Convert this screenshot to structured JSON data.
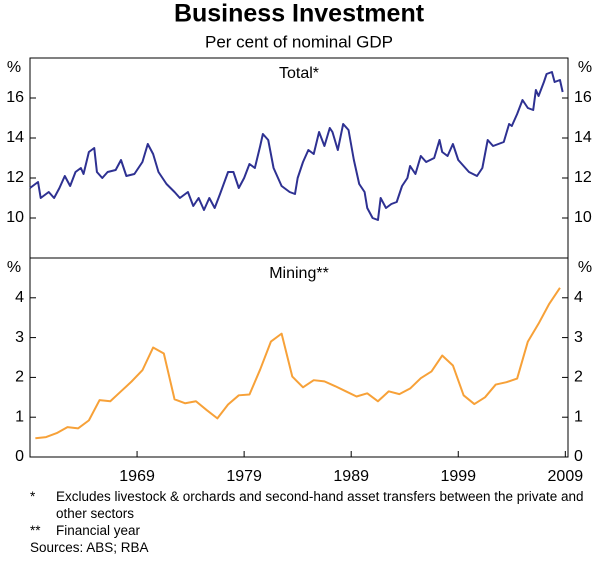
{
  "title": "Business Investment",
  "subtitle": "Per cent of nominal GDP",
  "chart_data": [
    {
      "type": "line",
      "title": "Total*",
      "ylabel": "%",
      "color": "#2e3192",
      "xlim": [
        1959,
        2009.25
      ],
      "ylim": [
        8,
        18
      ],
      "yticks": [
        10,
        12,
        14,
        16
      ],
      "x": [
        1959.0,
        1959.75,
        1960.0,
        1960.75,
        1961.25,
        1961.75,
        1962.25,
        1962.75,
        1963.25,
        1963.75,
        1964.0,
        1964.5,
        1965.0,
        1965.25,
        1965.75,
        1966.25,
        1967.0,
        1967.5,
        1968.0,
        1968.75,
        1969.5,
        1970.0,
        1970.5,
        1971.0,
        1971.75,
        1972.5,
        1973.0,
        1973.75,
        1974.25,
        1974.75,
        1975.25,
        1975.75,
        1976.25,
        1976.75,
        1977.5,
        1978.0,
        1978.5,
        1979.0,
        1979.5,
        1980.0,
        1980.5,
        1980.75,
        1981.25,
        1981.75,
        1982.5,
        1983.25,
        1983.75,
        1984.0,
        1984.5,
        1985.0,
        1985.5,
        1986.0,
        1986.5,
        1987.0,
        1987.25,
        1987.75,
        1988.25,
        1988.75,
        1989.25,
        1989.75,
        1990.25,
        1990.5,
        1991.0,
        1991.5,
        1991.75,
        1992.25,
        1992.75,
        1993.25,
        1993.75,
        1994.25,
        1994.5,
        1995.0,
        1995.5,
        1996.0,
        1996.75,
        1997.25,
        1997.5,
        1998.0,
        1998.5,
        1999.0,
        1999.5,
        2000.0,
        2000.75,
        2001.25,
        2001.75,
        2002.25,
        2002.75,
        2003.25,
        2003.75,
        2004.0,
        2004.5,
        2005.0,
        2005.5,
        2006.0,
        2006.25,
        2006.5,
        2007.0,
        2007.25,
        2007.75,
        2008.0,
        2008.5,
        2008.75
      ],
      "values": [
        11.5,
        11.8,
        11.0,
        11.3,
        11.0,
        11.5,
        12.1,
        11.6,
        12.3,
        12.5,
        12.2,
        13.3,
        13.5,
        12.3,
        12.0,
        12.3,
        12.4,
        12.9,
        12.1,
        12.2,
        12.8,
        13.7,
        13.2,
        12.3,
        11.7,
        11.3,
        11.0,
        11.3,
        10.6,
        11.0,
        10.4,
        11.0,
        10.5,
        11.2,
        12.3,
        12.3,
        11.5,
        12.0,
        12.7,
        12.5,
        13.6,
        14.2,
        13.9,
        12.5,
        11.6,
        11.3,
        11.2,
        12.0,
        12.8,
        13.4,
        13.2,
        14.3,
        13.6,
        14.5,
        14.3,
        13.4,
        14.7,
        14.4,
        12.9,
        11.7,
        11.3,
        10.5,
        10.0,
        9.9,
        11.0,
        10.5,
        10.7,
        10.8,
        11.6,
        12.0,
        12.6,
        12.2,
        13.1,
        12.8,
        13.0,
        13.9,
        13.3,
        13.1,
        13.7,
        12.9,
        12.6,
        12.3,
        12.1,
        12.5,
        13.9,
        13.6,
        13.7,
        13.8,
        14.7,
        14.6,
        15.2,
        15.9,
        15.5,
        15.4,
        16.4,
        16.1,
        16.8,
        17.2,
        17.3,
        16.8,
        16.9,
        16.3
      ]
    },
    {
      "type": "line",
      "title": "Mining**",
      "ylabel": "%",
      "color": "#f7a138",
      "xlim": [
        1959,
        2009.25
      ],
      "ylim": [
        0,
        5
      ],
      "yticks": [
        0,
        1,
        2,
        3,
        4
      ],
      "xticks": [
        1969,
        1979,
        1989,
        1999,
        2009
      ],
      "x": [
        1959.5,
        1960.5,
        1961.5,
        1962.5,
        1963.5,
        1964.5,
        1965.5,
        1966.5,
        1967.5,
        1968.5,
        1969.5,
        1970.5,
        1971.5,
        1972.5,
        1973.5,
        1974.5,
        1975.5,
        1976.5,
        1977.5,
        1978.5,
        1979.5,
        1980.5,
        1981.5,
        1982.5,
        1983.5,
        1984.5,
        1985.5,
        1986.5,
        1987.5,
        1988.5,
        1989.5,
        1990.5,
        1991.5,
        1992.5,
        1993.5,
        1994.5,
        1995.5,
        1996.5,
        1997.5,
        1998.5,
        1999.5,
        2000.5,
        2001.5,
        2002.5,
        2003.5,
        2004.5,
        2005.5,
        2006.5,
        2007.5,
        2008.5
      ],
      "values": [
        0.47,
        0.5,
        0.6,
        0.75,
        0.72,
        0.92,
        1.43,
        1.4,
        1.65,
        1.9,
        2.18,
        2.75,
        2.6,
        1.45,
        1.35,
        1.4,
        1.18,
        0.97,
        1.32,
        1.55,
        1.57,
        2.2,
        2.9,
        3.1,
        2.02,
        1.75,
        1.93,
        1.9,
        1.78,
        1.65,
        1.52,
        1.6,
        1.4,
        1.65,
        1.58,
        1.72,
        1.98,
        2.15,
        2.55,
        2.3,
        1.55,
        1.33,
        1.5,
        1.82,
        1.88,
        1.97,
        2.9,
        3.35,
        3.85,
        4.25
      ]
    }
  ],
  "notes": [
    {
      "marker": "*",
      "text": "Excludes livestock & orchards and second-hand asset transfers between the private and other sectors"
    },
    {
      "marker": "**",
      "text": "Financial year"
    }
  ],
  "sources": "Sources: ABS; RBA"
}
